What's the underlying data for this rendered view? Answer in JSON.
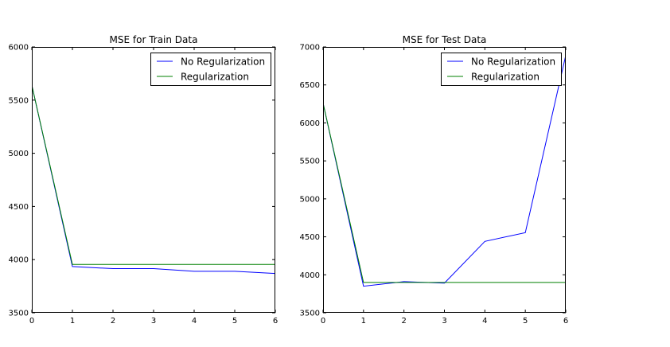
{
  "chart_data": [
    {
      "type": "line",
      "title": "MSE for Train Data",
      "xlabel": "",
      "ylabel": "",
      "xlim": [
        0,
        6
      ],
      "ylim": [
        3500,
        6000
      ],
      "xticks": [
        "0",
        "1",
        "2",
        "3",
        "4",
        "5",
        "6"
      ],
      "yticks": [
        "3500",
        "4000",
        "4500",
        "5000",
        "5500",
        "6000"
      ],
      "legend_position": "top-right",
      "grid": false,
      "x": [
        0,
        1,
        2,
        3,
        4,
        5,
        6
      ],
      "series": [
        {
          "name": "No Regularization",
          "color": "#0000ff",
          "values": [
            5640,
            3935,
            3915,
            3915,
            3890,
            3890,
            3870
          ]
        },
        {
          "name": "Regularization",
          "color": "#008000",
          "values": [
            5640,
            3955,
            3955,
            3955,
            3955,
            3955,
            3955
          ]
        }
      ]
    },
    {
      "type": "line",
      "title": "MSE for Test Data",
      "xlabel": "",
      "ylabel": "",
      "xlim": [
        0,
        6
      ],
      "ylim": [
        3500,
        7000
      ],
      "xticks": [
        "0",
        "1",
        "2",
        "3",
        "4",
        "5",
        "6"
      ],
      "yticks": [
        "3500",
        "4000",
        "4500",
        "5000",
        "5500",
        "6000",
        "6500",
        "7000"
      ],
      "legend_position": "top-right",
      "grid": false,
      "x": [
        0,
        1,
        2,
        3,
        4,
        5,
        6
      ],
      "series": [
        {
          "name": "No Regularization",
          "color": "#0000ff",
          "values": [
            6260,
            3850,
            3910,
            3890,
            4440,
            4555,
            6890
          ]
        },
        {
          "name": "Regularization",
          "color": "#008000",
          "values": [
            6260,
            3900,
            3900,
            3900,
            3900,
            3900,
            3900
          ]
        }
      ]
    }
  ]
}
